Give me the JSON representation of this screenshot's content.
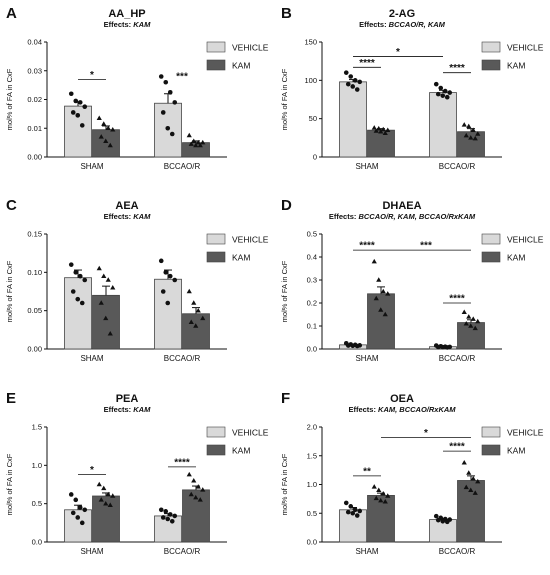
{
  "chart_data": [
    {
      "type": "bar",
      "panel": "A",
      "title": "AA_HP",
      "subtitle_prefix": "Effects: ",
      "subtitle_effects": "KAM",
      "ylabel": "mol% of FA in CxF",
      "categories": [
        "SHAM",
        "BCCAO/R"
      ],
      "ylim": [
        0,
        0.04
      ],
      "yticks": [
        "0.00",
        "0.01",
        "0.02",
        "0.03",
        "0.04"
      ],
      "ytick_values": [
        0,
        0.01,
        0.02,
        0.03,
        0.04
      ],
      "series": [
        {
          "name": "VEHICLE",
          "color": "#d9d9d9",
          "values": [
            0.0177,
            0.0187
          ],
          "errors": [
            0.0015,
            0.0033
          ],
          "points": [
            [
              0.022,
              0.0195,
              0.019,
              0.0175,
              0.0155,
              0.0145,
              0.011
            ],
            [
              0.028,
              0.026,
              0.0225,
              0.019,
              0.0155,
              0.01,
              0.008
            ]
          ]
        },
        {
          "name": "KAM",
          "color": "#595959",
          "values": [
            0.0095,
            0.005
          ],
          "errors": [
            0.0013,
            0.0006
          ],
          "points": [
            [
              0.0135,
              0.0115,
              0.01,
              0.0095,
              0.007,
              0.0055,
              0.004
            ],
            [
              0.0075,
              0.0055,
              0.005,
              0.005,
              0.0045,
              0.004,
              0.004
            ]
          ]
        }
      ],
      "significance": [
        {
          "label": "*",
          "from": [
            0,
            0
          ],
          "to": [
            0,
            1
          ],
          "y": 0.027
        },
        {
          "label": "***",
          "from": [
            1,
            0
          ],
          "to": [
            1,
            1
          ],
          "y": 0.0265,
          "noline": true
        }
      ]
    },
    {
      "type": "bar",
      "panel": "B",
      "title": "2-AG",
      "subtitle_prefix": "Effects: ",
      "subtitle_effects": "BCCAO/R, KAM",
      "ylabel": "mol% of FA in CxF",
      "categories": [
        "SHAM",
        "BCCAO/R"
      ],
      "ylim": [
        0,
        150
      ],
      "yticks": [
        "0",
        "50",
        "100",
        "150"
      ],
      "ytick_values": [
        0,
        50,
        100,
        150
      ],
      "series": [
        {
          "name": "VEHICLE",
          "color": "#d9d9d9",
          "values": [
            98,
            84
          ],
          "errors": [
            3,
            3
          ],
          "points": [
            [
              110,
              105,
              100,
              98,
              95,
              92,
              88
            ],
            [
              95,
              90,
              86,
              84,
              82,
              80,
              78
            ]
          ]
        },
        {
          "name": "KAM",
          "color": "#595959",
          "values": [
            35,
            33
          ],
          "errors": [
            2,
            4
          ],
          "points": [
            [
              38,
              37,
              36,
              35,
              34,
              33,
              31
            ],
            [
              42,
              40,
              35,
              30,
              28,
              25,
              24
            ]
          ]
        }
      ],
      "significance": [
        {
          "label": "****",
          "from": [
            0,
            0
          ],
          "to": [
            0,
            1
          ],
          "y": 117
        },
        {
          "label": "*",
          "from": [
            0,
            0
          ],
          "to": [
            1,
            0
          ],
          "y": 131
        },
        {
          "label": "****",
          "from": [
            1,
            0
          ],
          "to": [
            1,
            1
          ],
          "y": 110
        }
      ]
    },
    {
      "type": "bar",
      "panel": "C",
      "title": "AEA",
      "subtitle_prefix": "Effects: ",
      "subtitle_effects": "KAM",
      "ylabel": "mol% of FA in CxF",
      "categories": [
        "SHAM",
        "BCCAO/R"
      ],
      "ylim": [
        0,
        0.15
      ],
      "yticks": [
        "0.00",
        "0.05",
        "0.10",
        "0.15"
      ],
      "ytick_values": [
        0,
        0.05,
        0.1,
        0.15
      ],
      "series": [
        {
          "name": "VEHICLE",
          "color": "#d9d9d9",
          "values": [
            0.093,
            0.091
          ],
          "errors": [
            0.01,
            0.012
          ],
          "points": [
            [
              0.11,
              0.1,
              0.095,
              0.09,
              0.075,
              0.065,
              0.06
            ],
            [
              0.115,
              0.1,
              0.095,
              0.09,
              0.075,
              0.06
            ]
          ]
        },
        {
          "name": "KAM",
          "color": "#595959",
          "values": [
            0.07,
            0.046
          ],
          "errors": [
            0.012,
            0.008
          ],
          "points": [
            [
              0.105,
              0.095,
              0.09,
              0.08,
              0.06,
              0.04,
              0.02
            ],
            [
              0.075,
              0.06,
              0.05,
              0.04,
              0.035,
              0.03
            ]
          ]
        }
      ],
      "significance": []
    },
    {
      "type": "bar",
      "panel": "D",
      "title": "DHAEA",
      "subtitle_prefix": "Effects: ",
      "subtitle_effects": "BCCAO/R, KAM, BCCAO/RxKAM",
      "ylabel": "mol% of FA in CxF",
      "categories": [
        "SHAM",
        "BCCAO/R"
      ],
      "ylim": [
        0,
        0.5
      ],
      "yticks": [
        "0.0",
        "0.1",
        "0.2",
        "0.3",
        "0.4",
        "0.5"
      ],
      "ytick_values": [
        0,
        0.1,
        0.2,
        0.3,
        0.4,
        0.5
      ],
      "series": [
        {
          "name": "VEHICLE",
          "color": "#d9d9d9",
          "values": [
            0.018,
            0.01
          ],
          "errors": [
            0.003,
            0.002
          ],
          "points": [
            [
              0.025,
              0.02,
              0.018,
              0.016,
              0.015,
              0.014,
              0.013
            ],
            [
              0.015,
              0.012,
              0.01,
              0.009,
              0.008,
              0.008,
              0.007
            ]
          ]
        },
        {
          "name": "KAM",
          "color": "#595959",
          "values": [
            0.24,
            0.115
          ],
          "errors": [
            0.03,
            0.012
          ],
          "points": [
            [
              0.38,
              0.3,
              0.25,
              0.24,
              0.22,
              0.17,
              0.15
            ],
            [
              0.16,
              0.14,
              0.13,
              0.12,
              0.11,
              0.1,
              0.09
            ]
          ]
        }
      ],
      "significance": [
        {
          "label": "****",
          "from": [
            0,
            0
          ],
          "to": [
            0,
            1
          ],
          "y": 0.43
        },
        {
          "label": "***",
          "from": [
            0,
            1
          ],
          "to": [
            1,
            1
          ],
          "y": 0.43
        },
        {
          "label": "****",
          "from": [
            1,
            0
          ],
          "to": [
            1,
            1
          ],
          "y": 0.2
        }
      ]
    },
    {
      "type": "bar",
      "panel": "E",
      "title": "PEA",
      "subtitle_prefix": "Effects: ",
      "subtitle_effects": "KAM",
      "ylabel": "mol% of FA in CxF",
      "categories": [
        "SHAM",
        "BCCAO/R"
      ],
      "ylim": [
        0,
        1.5
      ],
      "yticks": [
        "0.0",
        "0.5",
        "1.0",
        "1.5"
      ],
      "ytick_values": [
        0,
        0.5,
        1.0,
        1.5
      ],
      "series": [
        {
          "name": "VEHICLE",
          "color": "#d9d9d9",
          "values": [
            0.42,
            0.34
          ],
          "errors": [
            0.06,
            0.03
          ],
          "points": [
            [
              0.62,
              0.55,
              0.45,
              0.42,
              0.38,
              0.32,
              0.25
            ],
            [
              0.42,
              0.4,
              0.36,
              0.34,
              0.32,
              0.3,
              0.27
            ]
          ]
        },
        {
          "name": "KAM",
          "color": "#595959",
          "values": [
            0.6,
            0.68
          ],
          "errors": [
            0.04,
            0.05
          ],
          "points": [
            [
              0.75,
              0.7,
              0.62,
              0.6,
              0.55,
              0.5,
              0.48
            ],
            [
              0.88,
              0.8,
              0.72,
              0.68,
              0.62,
              0.58,
              0.55
            ]
          ]
        }
      ],
      "significance": [
        {
          "label": "*",
          "from": [
            0,
            0
          ],
          "to": [
            0,
            1
          ],
          "y": 0.88
        },
        {
          "label": "****",
          "from": [
            1,
            0
          ],
          "to": [
            1,
            1
          ],
          "y": 0.98
        }
      ]
    },
    {
      "type": "bar",
      "panel": "F",
      "title": "OEA",
      "subtitle_prefix": "Effects: ",
      "subtitle_effects": "KAM, BCCAO/RxKAM",
      "ylabel": "mol% of FA in CxF",
      "categories": [
        "SHAM",
        "BCCAO/R"
      ],
      "ylim": [
        0,
        2.0
      ],
      "yticks": [
        "0.0",
        "0.5",
        "1.0",
        "1.5",
        "2.0"
      ],
      "ytick_values": [
        0,
        0.5,
        1.0,
        1.5,
        2.0
      ],
      "series": [
        {
          "name": "VEHICLE",
          "color": "#d9d9d9",
          "values": [
            0.56,
            0.39
          ],
          "errors": [
            0.04,
            0.02
          ],
          "points": [
            [
              0.68,
              0.62,
              0.56,
              0.54,
              0.52,
              0.5,
              0.46
            ],
            [
              0.45,
              0.42,
              0.4,
              0.39,
              0.38,
              0.36,
              0.35
            ]
          ]
        },
        {
          "name": "KAM",
          "color": "#595959",
          "values": [
            0.81,
            1.07
          ],
          "errors": [
            0.04,
            0.08
          ],
          "points": [
            [
              0.96,
              0.9,
              0.84,
              0.8,
              0.76,
              0.72,
              0.7
            ],
            [
              1.38,
              1.2,
              1.1,
              1.05,
              0.95,
              0.9,
              0.85
            ]
          ]
        }
      ],
      "significance": [
        {
          "label": "**",
          "from": [
            0,
            0
          ],
          "to": [
            0,
            1
          ],
          "y": 1.15
        },
        {
          "label": "*",
          "from": [
            0,
            1
          ],
          "to": [
            1,
            1
          ],
          "y": 1.82
        },
        {
          "label": "****",
          "from": [
            1,
            0
          ],
          "to": [
            1,
            1
          ],
          "y": 1.58
        }
      ]
    }
  ]
}
